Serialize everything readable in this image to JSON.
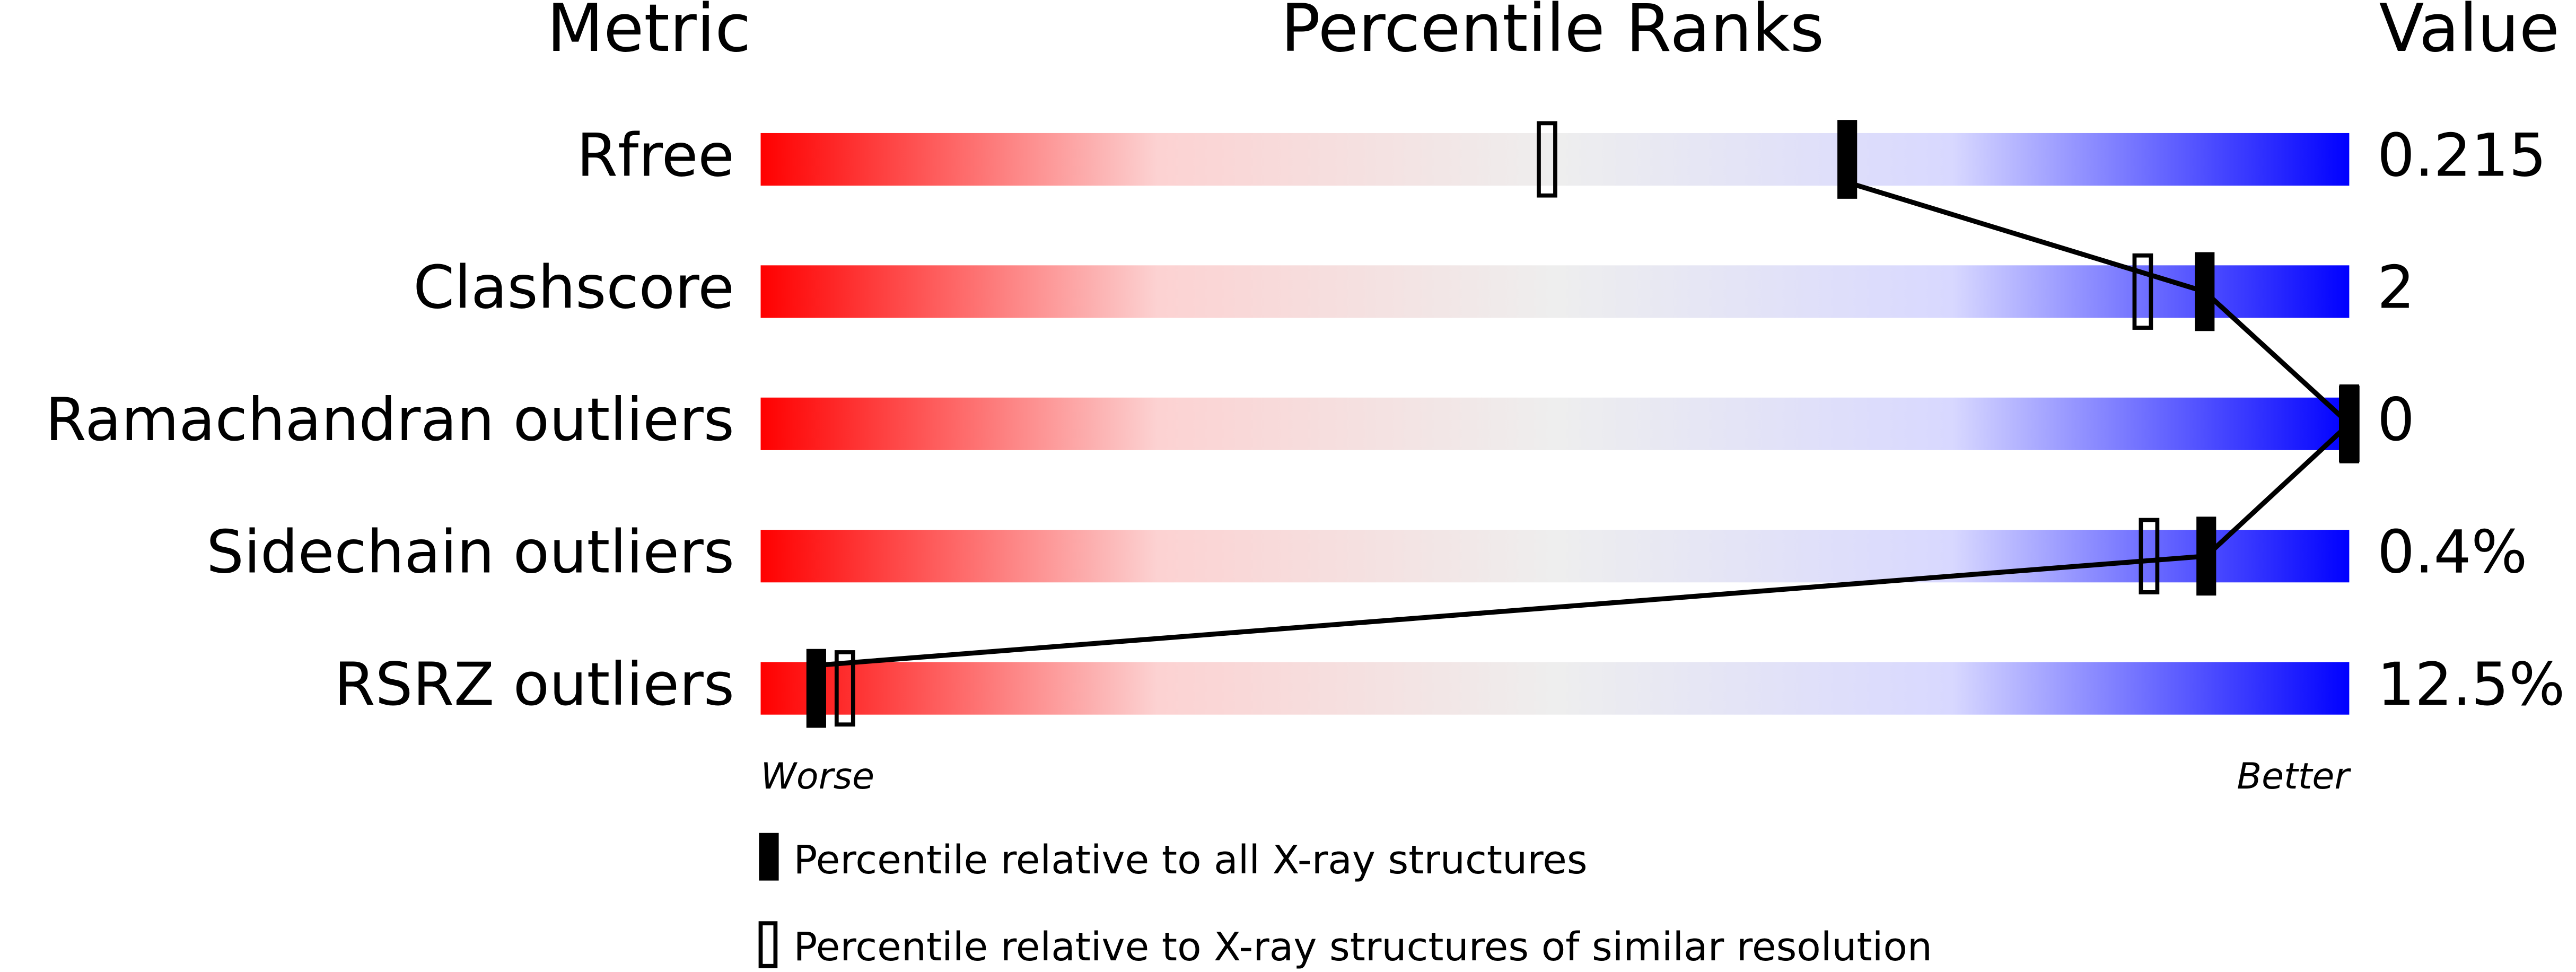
{
  "chart_data": {
    "type": "percentile",
    "headers": {
      "metric": "Metric",
      "percentile": "Percentile Ranks",
      "value": "Value"
    },
    "categories": [
      "Rfree",
      "Clashscore",
      "Ramachandran outliers",
      "Sidechain outliers",
      "RSRZ outliers"
    ],
    "printed_values": [
      "0.215",
      "2",
      "0",
      "0.4%",
      "12.5%"
    ],
    "series": [
      {
        "name": "Percentile relative to all X-ray structures",
        "color": "#000000",
        "style": "filled",
        "values": [
          68.4,
          90.9,
          100,
          91.0,
          3.5
        ]
      },
      {
        "name": "Percentile relative to X-ray structures of similar resolution",
        "color": "#000000",
        "style": "open",
        "values": [
          49.5,
          87.0,
          100,
          87.4,
          5.3
        ]
      }
    ],
    "xlim": [
      0,
      100
    ],
    "scale_labels": {
      "worse": "Worse",
      "better": "Better"
    },
    "gradient": [
      "#ff0000",
      "#fcd2d2",
      "#eeeeee",
      "#d8d8ff",
      "#0000ff"
    ]
  }
}
